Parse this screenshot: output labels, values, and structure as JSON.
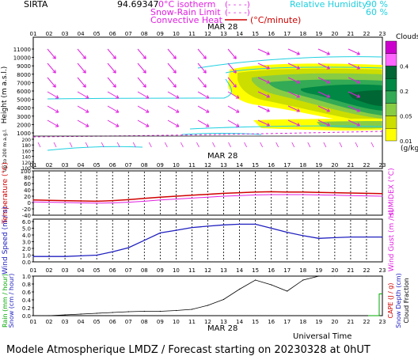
{
  "header": {
    "station": "SIRTA",
    "coords": "94.69347",
    "legend_isotherm": "0°C isotherm",
    "legend_snow": "Snow-Rain Limit",
    "legend_conv": "Convective Heat",
    "legend_conv_unit": "(°C/minute)",
    "legend_rh": "Relative Humidity",
    "rh_90": "90 %",
    "rh_60": "60 %",
    "dashes": "(- - - -)",
    "colors": {
      "magenta": "#e020e0",
      "cyan": "#20d0e0",
      "red": "#d00000"
    }
  },
  "hours": [
    "01",
    "02",
    "03",
    "04",
    "05",
    "06",
    "07",
    "08",
    "09",
    "10",
    "11",
    "12",
    "13",
    "14",
    "15",
    "16",
    "17",
    "18",
    "19",
    "20",
    "21",
    "22",
    "23"
  ],
  "date_label": "MAR 28",
  "panel1": {
    "ylabel": "Height (m a.s.l.)",
    "ylabel2": "Up to 200 m a.g.l.",
    "yticks_upper": [
      "11000",
      "10000",
      "9000",
      "8000",
      "7000",
      "6000",
      "5000",
      "4000",
      "3000",
      "2000",
      "1000"
    ],
    "yticks_lower": [
      "200",
      "180",
      "160",
      "140",
      "120",
      "100"
    ],
    "clouds_title": "Clouds",
    "clouds_ticks": [
      "0.4",
      "0.2",
      "0.05",
      "0.01"
    ],
    "clouds_unit": "(g/kg)",
    "clouds_colors": [
      "#cc00cc",
      "#ff66ff",
      "#006633",
      "#008844",
      "#33aa55",
      "#88cc44",
      "#ccdd00",
      "#ffff00"
    ]
  },
  "panel2": {
    "ylabel": "Temperature (°C)",
    "ylabel_right": "HUMIDEX (°C)",
    "yticks": [
      "100",
      "80",
      "60",
      "40",
      "20",
      "0",
      "-20",
      "-40"
    ]
  },
  "panel3": {
    "ylabel": "Wind Speed (m / s)",
    "ylabel_right": "Wind Gust (m / s)",
    "yticks": [
      "6.0",
      "5.0",
      "4.0",
      "3.0",
      "2.0",
      "1.0",
      "0.0"
    ]
  },
  "panel4": {
    "ylabel_a": "Rain (mm / hour)",
    "ylabel_b": "Snow (cm / hour)",
    "ylabel_r1": "CAPE (J / g)",
    "ylabel_r2": "Snow Depth (cm)",
    "ylabel_r3": "Cloud Fraction",
    "yticks": [
      "1.0",
      "0.8",
      "0.6",
      "0.4",
      "0.2",
      "0.0"
    ],
    "xlabel": "Universal Time"
  },
  "footer": "Modele Atmospherique LMDZ / Forecast starting on 20230328 at 0hUT",
  "chart_data": [
    {
      "type": "line",
      "title": "Temperature / HUMIDEX",
      "x": [
        "01",
        "02",
        "03",
        "04",
        "05",
        "06",
        "07",
        "08",
        "09",
        "10",
        "11",
        "12",
        "13",
        "14",
        "15",
        "16",
        "17",
        "18",
        "19",
        "20",
        "21",
        "22",
        "23"
      ],
      "ylim": [
        -40,
        100
      ],
      "series": [
        {
          "name": "Temperature",
          "color": "#d00000",
          "values": [
            8,
            7,
            6,
            5,
            4,
            6,
            9,
            13,
            17,
            20,
            23,
            26,
            29,
            31,
            33,
            34,
            33,
            33,
            32,
            31,
            30,
            29,
            28
          ]
        },
        {
          "name": "HUMIDEX",
          "color": "#e020e0",
          "values": [
            2,
            1,
            0,
            -1,
            -2,
            -1,
            1,
            4,
            8,
            11,
            14,
            17,
            20,
            22,
            24,
            25,
            25,
            25,
            24,
            23,
            22,
            21,
            20
          ]
        }
      ]
    },
    {
      "type": "line",
      "title": "Wind Speed",
      "x": [
        "01",
        "02",
        "03",
        "04",
        "05",
        "06",
        "07",
        "08",
        "09",
        "10",
        "11",
        "12",
        "13",
        "14",
        "15",
        "16",
        "17",
        "18",
        "19",
        "20",
        "21",
        "22",
        "23"
      ],
      "ylim": [
        0,
        6
      ],
      "series": [
        {
          "name": "Wind Speed",
          "color": "#2020c0",
          "values": [
            0.8,
            0.8,
            0.8,
            0.9,
            1.0,
            1.5,
            2.1,
            3.2,
            4.3,
            4.7,
            5.1,
            5.3,
            5.5,
            5.6,
            5.6,
            5.0,
            4.4,
            3.9,
            3.5,
            3.6,
            3.7,
            3.7,
            3.7
          ]
        }
      ]
    },
    {
      "type": "line",
      "title": "Rain / Cloud Fraction",
      "x": [
        "01",
        "02",
        "03",
        "04",
        "05",
        "06",
        "07",
        "08",
        "09",
        "10",
        "11",
        "12",
        "13",
        "14",
        "15",
        "16",
        "17",
        "18",
        "19",
        "20",
        "21",
        "22",
        "23"
      ],
      "ylim": [
        0,
        1.0
      ],
      "series": [
        {
          "name": "Cloud Fraction",
          "color": "#000000",
          "values": [
            0.0,
            0.0,
            0.02,
            0.04,
            0.06,
            0.08,
            0.1,
            0.11,
            0.11,
            0.13,
            0.16,
            0.26,
            0.41,
            0.67,
            0.9,
            0.78,
            0.62,
            0.9,
            1.0,
            1.0,
            1.0,
            1.0,
            1.0
          ]
        },
        {
          "name": "Rain",
          "color": "#00aa00",
          "values": [
            0,
            0,
            0,
            0,
            0,
            0,
            0,
            0,
            0,
            0,
            0,
            0,
            0,
            0,
            0,
            0,
            0,
            0,
            0,
            0,
            0,
            0,
            0.55
          ]
        }
      ]
    }
  ]
}
